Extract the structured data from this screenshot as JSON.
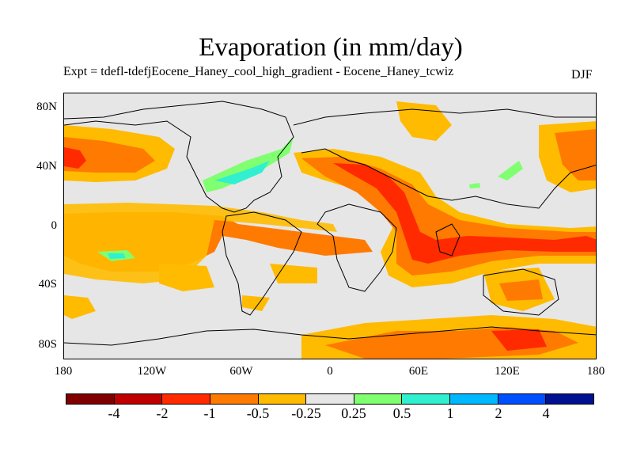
{
  "title": "Evaporation (in mm/day)",
  "subtitle": "Expt = tdefl-tdefjEocene_Haney_cool_high_gradient - Eocene_Haney_tcwiz",
  "season": "DJF",
  "lat_labels": [
    "80N",
    "40N",
    "0",
    "40S",
    "80S"
  ],
  "lon_labels": [
    "180",
    "120W",
    "60W",
    "0",
    "60E",
    "120E",
    "180"
  ],
  "colorbar": {
    "colors": [
      "#800000",
      "#c00000",
      "#ff2a00",
      "#ff7a00",
      "#ffbb00",
      "#e6e6e6",
      "#80ff70",
      "#30f0d0",
      "#00b8ff",
      "#0050ff",
      "#001090"
    ],
    "labels": [
      "-4",
      "-2",
      "-1",
      "-0.5",
      "-0.25",
      "0.25",
      "0.5",
      "1",
      "2",
      "4"
    ]
  },
  "chart_data": {
    "type": "heatmap",
    "title": "Evaporation (in mm/day)",
    "season": "DJF",
    "x_range": [
      -180,
      180
    ],
    "y_range": [
      -90,
      90
    ],
    "contour_levels": [
      -4,
      -2,
      -1,
      -0.5,
      -0.25,
      0.25,
      0.5,
      1,
      2,
      4
    ]
  }
}
